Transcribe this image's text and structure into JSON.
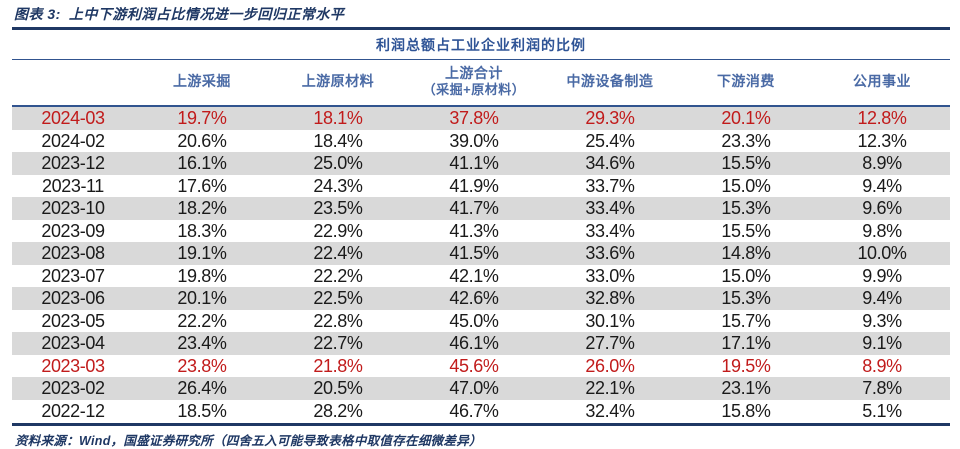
{
  "figure": {
    "label": "图表 3:",
    "title": "上中下游利润占比情况进一步回归正常水平",
    "source": "资料来源：Wind，国盛证券研究所（四舍五入可能导致表格中取值存在细微差异）"
  },
  "colors": {
    "accent_navy": "#1f3864",
    "header_blue": "#4a6aa5",
    "highlight_red": "#c11b1b",
    "row_shade": "#d9d9d9"
  },
  "chart_data": {
    "type": "table",
    "title": "利润总额占工业企业利润的比例",
    "columns": [
      {
        "label": "上游采掘"
      },
      {
        "label": "上游原材料"
      },
      {
        "label": "上游合计",
        "label2": "（采掘+原材料）"
      },
      {
        "label": "中游设备制造"
      },
      {
        "label": "下游消费"
      },
      {
        "label": "公用事业"
      }
    ],
    "rows": [
      {
        "date": "2024-03",
        "values": [
          "19.7%",
          "18.1%",
          "37.8%",
          "29.3%",
          "20.1%",
          "12.8%"
        ],
        "highlight": true,
        "shaded": true
      },
      {
        "date": "2024-02",
        "values": [
          "20.6%",
          "18.4%",
          "39.0%",
          "25.4%",
          "23.3%",
          "12.3%"
        ],
        "highlight": false,
        "shaded": false
      },
      {
        "date": "2023-12",
        "values": [
          "16.1%",
          "25.0%",
          "41.1%",
          "34.6%",
          "15.5%",
          "8.9%"
        ],
        "highlight": false,
        "shaded": true
      },
      {
        "date": "2023-11",
        "values": [
          "17.6%",
          "24.3%",
          "41.9%",
          "33.7%",
          "15.0%",
          "9.4%"
        ],
        "highlight": false,
        "shaded": false
      },
      {
        "date": "2023-10",
        "values": [
          "18.2%",
          "23.5%",
          "41.7%",
          "33.4%",
          "15.3%",
          "9.6%"
        ],
        "highlight": false,
        "shaded": true
      },
      {
        "date": "2023-09",
        "values": [
          "18.3%",
          "22.9%",
          "41.3%",
          "33.4%",
          "15.5%",
          "9.8%"
        ],
        "highlight": false,
        "shaded": false
      },
      {
        "date": "2023-08",
        "values": [
          "19.1%",
          "22.4%",
          "41.5%",
          "33.6%",
          "14.8%",
          "10.0%"
        ],
        "highlight": false,
        "shaded": true
      },
      {
        "date": "2023-07",
        "values": [
          "19.8%",
          "22.2%",
          "42.1%",
          "33.0%",
          "15.0%",
          "9.9%"
        ],
        "highlight": false,
        "shaded": false
      },
      {
        "date": "2023-06",
        "values": [
          "20.1%",
          "22.5%",
          "42.6%",
          "32.8%",
          "15.3%",
          "9.4%"
        ],
        "highlight": false,
        "shaded": true
      },
      {
        "date": "2023-05",
        "values": [
          "22.2%",
          "22.8%",
          "45.0%",
          "30.1%",
          "15.7%",
          "9.3%"
        ],
        "highlight": false,
        "shaded": false
      },
      {
        "date": "2023-04",
        "values": [
          "23.4%",
          "22.7%",
          "46.1%",
          "27.7%",
          "17.1%",
          "9.1%"
        ],
        "highlight": false,
        "shaded": true
      },
      {
        "date": "2023-03",
        "values": [
          "23.8%",
          "21.8%",
          "45.6%",
          "26.0%",
          "19.5%",
          "8.9%"
        ],
        "highlight": true,
        "shaded": false
      },
      {
        "date": "2023-02",
        "values": [
          "26.4%",
          "20.5%",
          "47.0%",
          "22.1%",
          "23.1%",
          "7.8%"
        ],
        "highlight": false,
        "shaded": true
      },
      {
        "date": "2022-12",
        "values": [
          "18.5%",
          "28.2%",
          "46.7%",
          "32.4%",
          "15.8%",
          "5.1%"
        ],
        "highlight": false,
        "shaded": false
      }
    ]
  }
}
